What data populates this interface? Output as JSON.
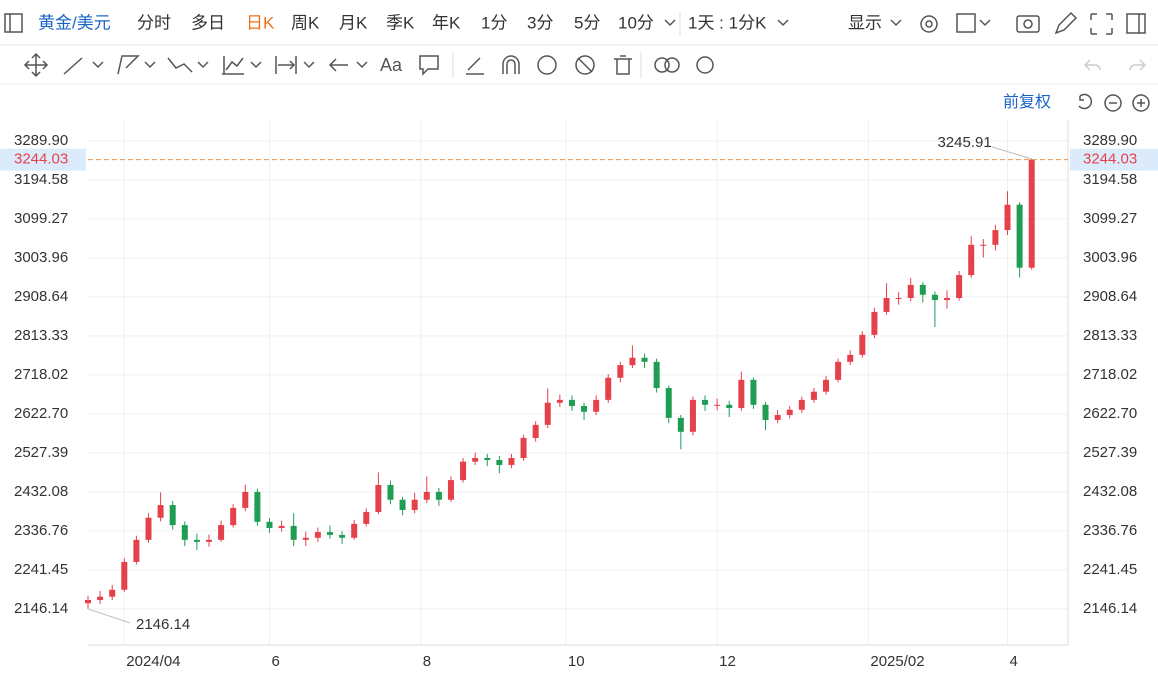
{
  "toolbar": {
    "symbol": "黄金/美元",
    "periods": [
      "分时",
      "多日",
      "日K",
      "周K",
      "月K",
      "季K",
      "年K",
      "1分",
      "3分",
      "5分",
      "10分"
    ],
    "active_period": 2,
    "range": "1天 : 1分K",
    "display": "显示",
    "font_tool": "Aa"
  },
  "adjust": "前复权",
  "chart_data": {
    "type": "candlestick",
    "open": [
      2160,
      2168,
      2176,
      2193,
      2261,
      2315,
      2369,
      2400,
      2351,
      2315,
      2310,
      2315,
      2351,
      2393,
      2432,
      2359,
      2344,
      2349,
      2315,
      2320,
      2334,
      2327,
      2320,
      2354,
      2383,
      2449,
      2413,
      2388,
      2413,
      2432,
      2413,
      2461,
      2506,
      2515,
      2510,
      2498,
      2515,
      2564,
      2596,
      2650,
      2657,
      2642,
      2628,
      2657,
      2711,
      2742,
      2760,
      2750,
      2686,
      2613,
      2579,
      2657,
      2645,
      2645,
      2637,
      2706,
      2645,
      2608,
      2620,
      2633,
      2657,
      2677,
      2706,
      2750,
      2767,
      2816,
      2872,
      2906,
      2906,
      2938,
      2914,
      2901,
      2906,
      2962,
      3036,
      3036,
      3072,
      3134,
      2980
    ],
    "high": [
      2178,
      2190,
      2205,
      2270,
      2325,
      2380,
      2431,
      2410,
      2360,
      2330,
      2328,
      2362,
      2402,
      2450,
      2440,
      2368,
      2362,
      2380,
      2335,
      2345,
      2350,
      2336,
      2364,
      2392,
      2480,
      2460,
      2420,
      2430,
      2470,
      2442,
      2470,
      2515,
      2528,
      2525,
      2520,
      2525,
      2572,
      2605,
      2685,
      2670,
      2668,
      2650,
      2668,
      2720,
      2750,
      2790,
      2770,
      2758,
      2692,
      2620,
      2665,
      2668,
      2660,
      2655,
      2726,
      2712,
      2652,
      2632,
      2642,
      2665,
      2686,
      2715,
      2758,
      2778,
      2825,
      2882,
      2942,
      2920,
      2955,
      2945,
      2922,
      2925,
      2972,
      3057,
      3050,
      3085,
      3167,
      3140,
      3245.91
    ],
    "low": [
      2146.14,
      2158,
      2168,
      2188,
      2255,
      2308,
      2360,
      2340,
      2300,
      2290,
      2298,
      2310,
      2345,
      2385,
      2350,
      2332,
      2335,
      2300,
      2300,
      2310,
      2318,
      2305,
      2315,
      2348,
      2378,
      2402,
      2375,
      2380,
      2405,
      2398,
      2408,
      2455,
      2498,
      2495,
      2478,
      2490,
      2508,
      2555,
      2588,
      2640,
      2630,
      2608,
      2620,
      2650,
      2700,
      2735,
      2735,
      2675,
      2600,
      2536,
      2570,
      2630,
      2632,
      2615,
      2630,
      2635,
      2583,
      2600,
      2612,
      2625,
      2650,
      2670,
      2700,
      2742,
      2760,
      2808,
      2865,
      2890,
      2898,
      2895,
      2835,
      2880,
      2900,
      2955,
      3005,
      3022,
      3060,
      2956,
      2975
    ],
    "close": [
      2168,
      2176,
      2193,
      2261,
      2315,
      2369,
      2400,
      2351,
      2315,
      2310,
      2315,
      2351,
      2393,
      2432,
      2359,
      2344,
      2349,
      2315,
      2320,
      2334,
      2327,
      2320,
      2354,
      2383,
      2449,
      2413,
      2388,
      2413,
      2432,
      2413,
      2461,
      2506,
      2515,
      2510,
      2498,
      2515,
      2564,
      2596,
      2650,
      2657,
      2642,
      2628,
      2657,
      2711,
      2742,
      2760,
      2750,
      2686,
      2613,
      2579,
      2657,
      2645,
      2645,
      2637,
      2706,
      2645,
      2608,
      2620,
      2633,
      2657,
      2677,
      2706,
      2750,
      2767,
      2816,
      2872,
      2906,
      2906,
      2938,
      2914,
      2901,
      2906,
      2962,
      3036,
      3036,
      3072,
      3134,
      2980,
      3244.03
    ],
    "up_color": "#e5414b",
    "down_color": "#1f9d55",
    "price_line_color": "#f0954a",
    "ylim": [
      2058,
      3341
    ],
    "yticks": [
      {
        "value": 3289.9,
        "label": "3289.90"
      },
      3194.58,
      3099.27,
      3003.96,
      2908.64,
      2813.33,
      2718.02,
      {
        "value": 2622.7,
        "label": "2622.70"
      },
      2527.39,
      2432.08,
      2336.76,
      2241.45,
      2146.14
    ],
    "xlim": [
      0,
      81
    ],
    "xticks": [
      {
        "value": 3,
        "label": "2024/04"
      },
      {
        "value": 15,
        "label": "6"
      },
      {
        "value": 27.5,
        "label": "8"
      },
      {
        "value": 39.5,
        "label": "10"
      },
      {
        "value": 52,
        "label": "12"
      },
      {
        "value": 64.5,
        "label": "2025/02"
      },
      {
        "value": 76,
        "label": "4"
      }
    ],
    "grid": true
  }
}
